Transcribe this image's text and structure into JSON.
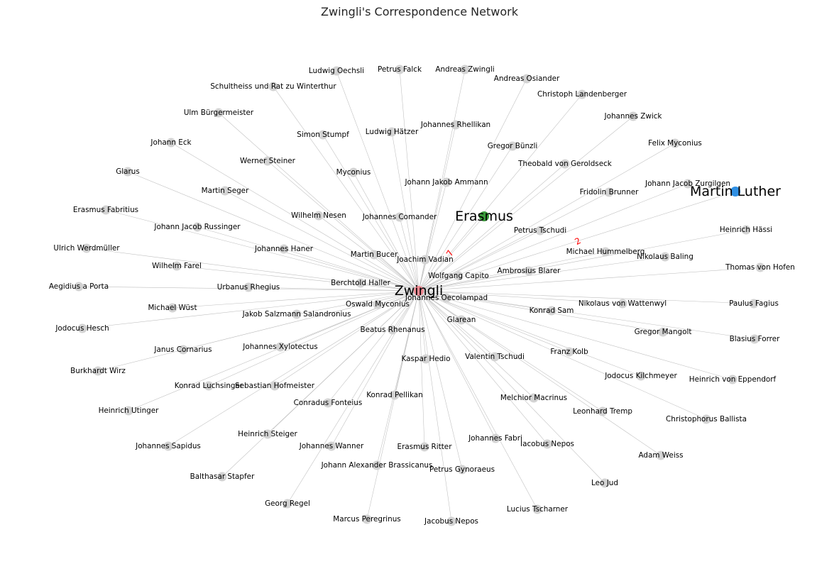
{
  "title": "Zwingli's Correspondence Network",
  "colors": {
    "hub": "#f28b94",
    "erasmus": "#3a9a3a",
    "luther": "#2f8fe3",
    "other": "#d3d3d3",
    "edge": "#bdbdbd",
    "edge_label": "#ff0000"
  },
  "hub": "Zwingli",
  "nodes": [
    "Zwingli",
    "Erasmus",
    "Martin Luther",
    "Ludwig Oechsli",
    "Petrus Falck",
    "Andreas Zwingli",
    "Andreas Osiander",
    "Schultheiss und Rat zu Winterthur",
    "Christoph Landenberger",
    "Ulm Bürgermeister",
    "Johannes Rhellikan",
    "Johannes Zwick",
    "Simon Stumpf",
    "Ludwig Hätzer",
    "Johann Eck",
    "Gregor Bünzli",
    "Felix Myconius",
    "Werner Steiner",
    "Theobald von Geroldseck",
    "Glarus",
    "Myconius",
    "Johann Jakob Ammann",
    "Johann Jacob Zurgilgen",
    "Martin Seger",
    "Fridolin Brunner",
    "Erasmus Fabritius",
    "Wilhelm Nesen",
    "Johannes Comander",
    "Johann Jacob Russinger",
    "Petrus Tschudi",
    "Heinrich Hässi",
    "Ulrich Werdmüller",
    "Johannes Haner",
    "Martin Bucer",
    "Michael Hummelberg",
    "Joachim Vadian",
    "Nikolaus Baling",
    "Wilhelm Farel",
    "Thomas von Hofen",
    "Ambrosius Blarer",
    "Wolfgang Capito",
    "Aegidius a Porta",
    "Berchtold Haller",
    "Urbanus Rhegius",
    "Johannes Oecolampad",
    "Nikolaus von Wattenwyl",
    "Paulus Fagius",
    "Michael Wüst",
    "Oswald Myconius",
    "Konrad Sam",
    "Jakob Salzmann Salandronius",
    "Glarean",
    "Gregor Mangolt",
    "Jodocus Hesch",
    "Beatus Rhenanus",
    "Blasius Forrer",
    "Janus Cornarius",
    "Johannes Xylotectus",
    "Franz Kolb",
    "Valentin Tschudi",
    "Kaspar Hedio",
    "Jodocus Kilchmeyer",
    "Burkhardt Wirz",
    "Heinrich von Eppendorf",
    "Konrad Luchsinger",
    "Sebastian Hofmeister",
    "Konrad Pellikan",
    "Melchior Macrinus",
    "Heinrich Utinger",
    "Conradus Fonteius",
    "Leonhard Tremp",
    "Christophorus Ballista",
    "Heinrich Steiger",
    "Johannes Fabri",
    "Johannes Sapidus",
    "Johannes Wanner",
    "Erasmus Ritter",
    "Iacobus Nepos",
    "Adam Weiss",
    "Johann Alexander Brassicanus",
    "Petrus Gynoraeus",
    "Balthasar Stapfer",
    "Leo Jud",
    "Georg Regel",
    "Lucius Tscharner",
    "Marcus Peregrinus",
    "Jacobus Nepos"
  ],
  "edge_labels": [
    {
      "to": "Erasmus",
      "label": "7"
    },
    {
      "to": "Martin Luther",
      "label": "2"
    }
  ]
}
